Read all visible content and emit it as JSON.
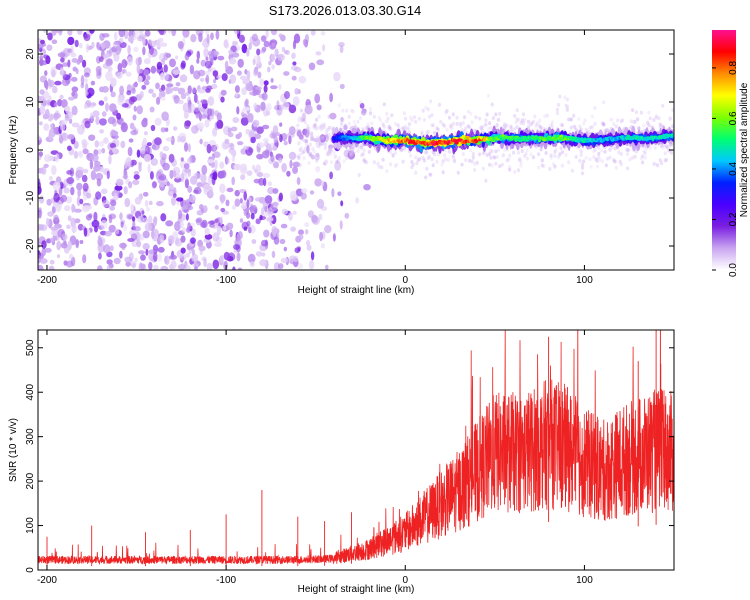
{
  "title": "S173.2026.013.03.30.G14",
  "chart_data": [
    {
      "type": "heatmap",
      "name": "spectrogram",
      "xlabel": "Height of straight line (km)",
      "ylabel": "Frequency (Hz)",
      "xlim": [
        -205,
        150
      ],
      "ylim": [
        -25,
        25
      ],
      "x_ticks": [
        -200,
        -100,
        0,
        100
      ],
      "y_ticks": [
        -20,
        -10,
        0,
        10,
        20
      ],
      "colorbar": {
        "label": "Normalized spectral amplitude",
        "range": [
          0,
          0.95
        ],
        "ticks": [
          0,
          0.2,
          0.4,
          0.6,
          0.8
        ],
        "colors": [
          "#ffffff",
          "#c9a5f0",
          "#7a1fe0",
          "#4a00ff",
          "#0020ff",
          "#00c8ff",
          "#00ff70",
          "#7fff00",
          "#ffff00",
          "#ff8c00",
          "#ff0000",
          "#ff1090"
        ]
      },
      "noise_region_x": [
        -205,
        -30
      ],
      "signal_trace": {
        "x": [
          -40,
          -30,
          -20,
          -10,
          0,
          10,
          20,
          30,
          40,
          50,
          60,
          70,
          80,
          90,
          100,
          110,
          120,
          130,
          140,
          150
        ],
        "center_hz": [
          2.5,
          2.5,
          2.5,
          2.0,
          2.0,
          1.5,
          1.5,
          2.0,
          2.0,
          2.5,
          2.5,
          2.5,
          2.5,
          2.5,
          2.0,
          2.0,
          2.5,
          2.5,
          2.5,
          3.0
        ],
        "peak_amplitude": [
          0.35,
          0.45,
          0.6,
          0.75,
          0.85,
          0.9,
          0.92,
          0.9,
          0.85,
          0.6,
          0.55,
          0.55,
          0.6,
          0.6,
          0.5,
          0.45,
          0.45,
          0.5,
          0.5,
          0.5
        ]
      }
    },
    {
      "type": "line",
      "name": "snr",
      "xlabel": "Height of straight line (km)",
      "ylabel": "SNR (10 * v/v)",
      "xlim": [
        -205,
        150
      ],
      "ylim": [
        0,
        540
      ],
      "x_ticks": [
        -200,
        -100,
        0,
        100
      ],
      "y_ticks": [
        0,
        100,
        200,
        300,
        400,
        500
      ],
      "color": "#ee2222",
      "baseline": {
        "x": [
          -205,
          -150,
          -100,
          -60,
          -40,
          -20,
          0,
          10,
          20,
          30,
          40,
          50,
          60,
          70,
          80,
          90,
          100,
          110,
          120,
          130,
          140,
          150
        ],
        "y": [
          22,
          22,
          22,
          22,
          25,
          45,
          80,
          110,
          140,
          170,
          210,
          250,
          250,
          255,
          270,
          260,
          230,
          210,
          230,
          245,
          255,
          250
        ]
      },
      "spikes": {
        "x": [
          -200,
          -175,
          -145,
          -120,
          -100,
          -80,
          -60,
          -45,
          -30,
          80,
          130,
          140
        ],
        "y": [
          75,
          100,
          85,
          90,
          125,
          180,
          120,
          110,
          130,
          525,
          470,
          540
        ]
      }
    }
  ]
}
